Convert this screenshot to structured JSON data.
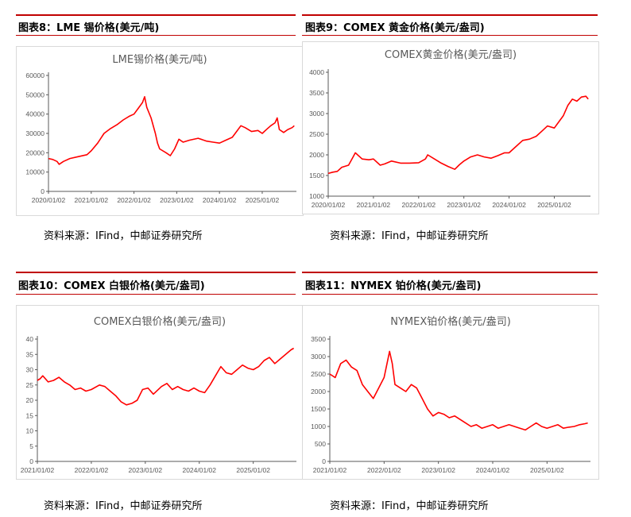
{
  "source_note": "资料来源：IFind，中邮证券研究所",
  "accent_color": "#c00000",
  "line_color": "#ff0000",
  "chart_data": [
    {
      "id": "tin",
      "fig_label": "图表8：LME 锡价格(美元/吨)",
      "title": "LME锡价格(美元/吨)",
      "type": "line",
      "ylim": [
        0,
        60000
      ],
      "yticks": [
        0,
        10000,
        20000,
        30000,
        40000,
        50000,
        60000
      ],
      "xlim": [
        2020.0,
        2025.8
      ],
      "xticks": [
        2020.0,
        2021.0,
        2022.0,
        2023.0,
        2024.0,
        2025.0
      ],
      "xtick_labels": [
        "2020/01/02",
        "2021/01/02",
        "2022/01/02",
        "2023/01/02",
        "2024/01/02",
        "2025/01/02"
      ],
      "x": [
        2020.0,
        2020.1,
        2020.2,
        2020.25,
        2020.35,
        2020.5,
        2020.7,
        2020.9,
        2021.0,
        2021.15,
        2021.3,
        2021.45,
        2021.6,
        2021.75,
        2021.9,
        2022.0,
        2022.1,
        2022.2,
        2022.25,
        2022.3,
        2022.4,
        2022.5,
        2022.55,
        2022.6,
        2022.75,
        2022.85,
        2022.95,
        2023.05,
        2023.15,
        2023.3,
        2023.5,
        2023.7,
        2023.85,
        2024.0,
        2024.15,
        2024.3,
        2024.4,
        2024.5,
        2024.6,
        2024.75,
        2024.9,
        2025.0,
        2025.1,
        2025.2,
        2025.3,
        2025.35,
        2025.4,
        2025.5,
        2025.6,
        2025.7,
        2025.75
      ],
      "y": [
        17000,
        16500,
        15500,
        14000,
        15500,
        17000,
        18000,
        19000,
        21000,
        25000,
        30000,
        32500,
        34500,
        37000,
        39000,
        40000,
        43000,
        46000,
        49000,
        43500,
        38000,
        30000,
        25000,
        22000,
        20000,
        18500,
        22000,
        27000,
        25500,
        26500,
        27500,
        26000,
        25500,
        25000,
        26500,
        28000,
        31000,
        34000,
        33000,
        31000,
        31500,
        30000,
        32000,
        34000,
        35500,
        38000,
        32000,
        30500,
        32000,
        33000,
        34000
      ]
    },
    {
      "id": "gold",
      "fig_label": "图表9：COMEX 黄金价格(美元/盎司)",
      "title": "COMEX黄金价格(美元/盎司)",
      "type": "line",
      "ylim": [
        1000,
        4000
      ],
      "yticks": [
        1000,
        1500,
        2000,
        2500,
        3000,
        3500,
        4000
      ],
      "xlim": [
        2020.0,
        2025.8
      ],
      "xticks": [
        2020.0,
        2021.0,
        2022.0,
        2023.0,
        2024.0,
        2025.0
      ],
      "xtick_labels": [
        "2020/01/02",
        "2021/01/02",
        "2022/01/02",
        "2023/01/02",
        "2024/01/02",
        "2025/01/02"
      ],
      "x": [
        2020.0,
        2020.1,
        2020.2,
        2020.3,
        2020.45,
        2020.55,
        2020.6,
        2020.75,
        2020.9,
        2021.0,
        2021.15,
        2021.25,
        2021.4,
        2021.6,
        2021.8,
        2022.0,
        2022.15,
        2022.2,
        2022.35,
        2022.5,
        2022.65,
        2022.8,
        2022.9,
        2023.0,
        2023.15,
        2023.3,
        2023.45,
        2023.6,
        2023.75,
        2023.9,
        2024.0,
        2024.15,
        2024.3,
        2024.45,
        2024.6,
        2024.75,
        2024.85,
        2025.0,
        2025.1,
        2025.2,
        2025.3,
        2025.4,
        2025.5,
        2025.6,
        2025.7,
        2025.75
      ],
      "y": [
        1550,
        1580,
        1600,
        1700,
        1750,
        1950,
        2050,
        1900,
        1880,
        1900,
        1750,
        1780,
        1850,
        1800,
        1800,
        1810,
        1900,
        2000,
        1900,
        1800,
        1720,
        1650,
        1760,
        1850,
        1950,
        2000,
        1950,
        1920,
        1980,
        2050,
        2050,
        2200,
        2350,
        2380,
        2450,
        2600,
        2700,
        2650,
        2800,
        2950,
        3200,
        3350,
        3300,
        3400,
        3420,
        3350
      ]
    },
    {
      "id": "silver",
      "fig_label": "图表10：COMEX 白银价格(美元/盎司)",
      "title": "COMEX白银价格(美元/盎司)",
      "type": "line",
      "ylim": [
        0,
        40
      ],
      "yticks": [
        0,
        5,
        10,
        15,
        20,
        25,
        30,
        35,
        40
      ],
      "xlim": [
        2021.0,
        2025.8
      ],
      "xticks": [
        2021.0,
        2022.0,
        2023.0,
        2024.0,
        2025.0
      ],
      "xtick_labels": [
        "2021/01/02",
        "2022/01/02",
        "2023/01/02",
        "2024/01/02",
        "2025/01/02"
      ],
      "x": [
        2021.0,
        2021.05,
        2021.1,
        2021.2,
        2021.3,
        2021.4,
        2021.5,
        2021.6,
        2021.7,
        2021.8,
        2021.9,
        2022.0,
        2022.15,
        2022.25,
        2022.35,
        2022.45,
        2022.55,
        2022.65,
        2022.75,
        2022.85,
        2022.95,
        2023.05,
        2023.15,
        2023.3,
        2023.4,
        2023.5,
        2023.6,
        2023.7,
        2023.8,
        2023.9,
        2024.0,
        2024.1,
        2024.2,
        2024.3,
        2024.4,
        2024.5,
        2024.6,
        2024.7,
        2024.8,
        2024.9,
        2025.0,
        2025.1,
        2025.2,
        2025.3,
        2025.4,
        2025.5,
        2025.6,
        2025.7,
        2025.75
      ],
      "y": [
        26.5,
        27,
        28,
        26,
        26.5,
        27.5,
        26,
        25,
        23.5,
        24,
        23,
        23.5,
        25,
        24.5,
        23,
        21.5,
        19.5,
        18.5,
        19,
        20,
        23.5,
        24,
        22,
        24.5,
        25.5,
        23.5,
        24.5,
        23.5,
        23,
        24,
        23,
        22.5,
        25,
        28,
        31,
        29,
        28.5,
        30,
        31.5,
        30.5,
        30,
        31,
        33,
        34,
        32,
        33.5,
        35,
        36.5,
        37
      ]
    },
    {
      "id": "platinum",
      "fig_label": "图表11：NYMEX 铂价格(美元/盎司)",
      "title": "NYMEX铂价格(美元/盎司)",
      "type": "line",
      "ylim": [
        0,
        3500
      ],
      "yticks": [
        0,
        500,
        1000,
        1500,
        2000,
        2500,
        3000,
        3500
      ],
      "xlim": [
        2021.0,
        2025.8
      ],
      "xticks": [
        2021.0,
        2022.0,
        2023.0,
        2024.0,
        2025.0
      ],
      "xtick_labels": [
        "2021/01/02",
        "2022/01/02",
        "2023/01/02",
        "2024/01/02",
        "2025/01/02"
      ],
      "x": [
        2021.0,
        2021.1,
        2021.2,
        2021.3,
        2021.4,
        2021.5,
        2021.6,
        2021.7,
        2021.8,
        2021.9,
        2022.0,
        2022.1,
        2022.15,
        2022.2,
        2022.3,
        2022.4,
        2022.5,
        2022.6,
        2022.7,
        2022.8,
        2022.9,
        2023.0,
        2023.1,
        2023.2,
        2023.3,
        2023.4,
        2023.5,
        2023.6,
        2023.7,
        2023.8,
        2023.9,
        2024.0,
        2024.1,
        2024.2,
        2024.3,
        2024.4,
        2024.5,
        2024.6,
        2024.7,
        2024.8,
        2024.9,
        2025.0,
        2025.1,
        2025.2,
        2025.3,
        2025.4,
        2025.5,
        2025.6,
        2025.7,
        2025.75
      ],
      "y": [
        2500,
        2400,
        2800,
        2900,
        2700,
        2600,
        2200,
        2000,
        1800,
        2100,
        2400,
        3150,
        2800,
        2200,
        2100,
        2000,
        2200,
        2100,
        1800,
        1500,
        1300,
        1400,
        1350,
        1250,
        1300,
        1200,
        1100,
        1000,
        1050,
        950,
        1000,
        1050,
        950,
        1000,
        1050,
        1000,
        950,
        900,
        1000,
        1100,
        1000,
        950,
        1000,
        1050,
        950,
        980,
        1000,
        1050,
        1080,
        1100
      ]
    }
  ]
}
